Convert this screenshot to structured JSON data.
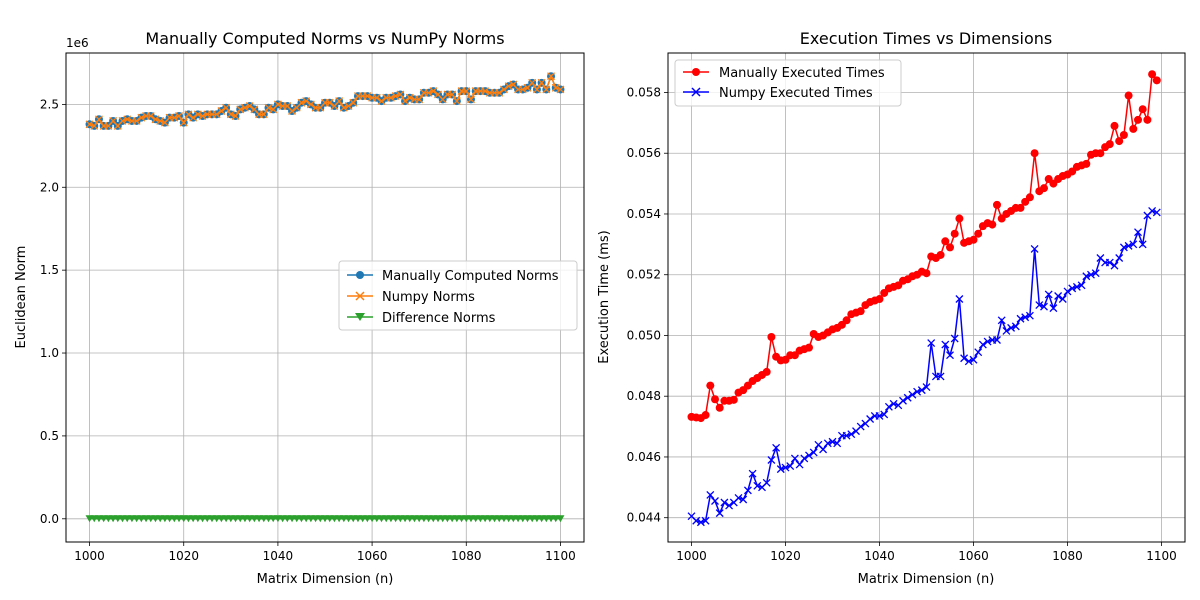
{
  "chart_data": [
    {
      "type": "line",
      "title": "Manually Computed Norms vs NumPy Norms",
      "xlabel": "Matrix Dimension (n)",
      "ylabel": "Euclidean Norm",
      "y_multiplier_label": "1e6",
      "xlim": [
        995,
        1105
      ],
      "ylim": [
        -0.14,
        2.81
      ],
      "xticks": [
        1000,
        1020,
        1040,
        1060,
        1080,
        1100
      ],
      "xtick_labels": [
        "1000",
        "1020",
        "1040",
        "1060",
        "1080",
        "1100"
      ],
      "yticks": [
        0,
        0.5,
        1,
        1.5,
        2,
        2.5
      ],
      "ytick_labels": [
        "0.0",
        "0.5",
        "1.0",
        "1.5",
        "2.0",
        "2.5"
      ],
      "grid": true,
      "legend_position": "center-right",
      "x_range": [
        1000,
        1100
      ],
      "series": [
        {
          "name": "Manually Computed Norms",
          "color": "#1f77b4",
          "marker": "circle",
          "values": [
            2.38,
            2.37,
            2.41,
            2.37,
            2.37,
            2.4,
            2.37,
            2.4,
            2.41,
            2.4,
            2.4,
            2.42,
            2.43,
            2.43,
            2.41,
            2.4,
            2.39,
            2.42,
            2.42,
            2.43,
            2.39,
            2.44,
            2.42,
            2.44,
            2.43,
            2.44,
            2.44,
            2.44,
            2.46,
            2.48,
            2.44,
            2.43,
            2.47,
            2.48,
            2.49,
            2.47,
            2.44,
            2.44,
            2.48,
            2.47,
            2.5,
            2.49,
            2.49,
            2.46,
            2.48,
            2.51,
            2.52,
            2.5,
            2.48,
            2.48,
            2.51,
            2.51,
            2.49,
            2.52,
            2.48,
            2.49,
            2.51,
            2.55,
            2.55,
            2.55,
            2.54,
            2.54,
            2.52,
            2.54,
            2.54,
            2.55,
            2.56,
            2.52,
            2.54,
            2.53,
            2.53,
            2.57,
            2.57,
            2.58,
            2.56,
            2.53,
            2.56,
            2.56,
            2.52,
            2.58,
            2.58,
            2.53,
            2.58,
            2.58,
            2.58,
            2.57,
            2.57,
            2.57,
            2.59,
            2.61,
            2.62,
            2.59,
            2.59,
            2.6,
            2.63,
            2.59,
            2.63,
            2.59,
            2.67,
            2.6,
            2.59
          ]
        },
        {
          "name": "Numpy Norms",
          "color": "#ff7f0e",
          "marker": "x",
          "values": [
            2.38,
            2.37,
            2.41,
            2.37,
            2.37,
            2.4,
            2.37,
            2.4,
            2.41,
            2.4,
            2.4,
            2.42,
            2.43,
            2.43,
            2.41,
            2.4,
            2.39,
            2.42,
            2.42,
            2.43,
            2.39,
            2.44,
            2.42,
            2.44,
            2.43,
            2.44,
            2.44,
            2.44,
            2.46,
            2.48,
            2.44,
            2.43,
            2.47,
            2.48,
            2.49,
            2.47,
            2.44,
            2.44,
            2.48,
            2.47,
            2.5,
            2.49,
            2.49,
            2.46,
            2.48,
            2.51,
            2.52,
            2.5,
            2.48,
            2.48,
            2.51,
            2.51,
            2.49,
            2.52,
            2.48,
            2.49,
            2.51,
            2.55,
            2.55,
            2.55,
            2.54,
            2.54,
            2.52,
            2.54,
            2.54,
            2.55,
            2.56,
            2.52,
            2.54,
            2.53,
            2.53,
            2.57,
            2.57,
            2.58,
            2.56,
            2.53,
            2.56,
            2.56,
            2.52,
            2.58,
            2.58,
            2.53,
            2.58,
            2.58,
            2.58,
            2.57,
            2.57,
            2.57,
            2.59,
            2.61,
            2.62,
            2.59,
            2.59,
            2.6,
            2.63,
            2.59,
            2.63,
            2.59,
            2.67,
            2.6,
            2.59
          ]
        },
        {
          "name": "Difference Norms",
          "color": "#2ca02c",
          "marker": "triangle-down",
          "values_constant": 0
        }
      ]
    },
    {
      "type": "line",
      "title": "Execution Times vs Dimensions",
      "xlabel": "Matrix Dimension (n)",
      "ylabel": "Execution Time (ms)",
      "xlim": [
        995,
        1105
      ],
      "ylim": [
        0.0432,
        0.0593
      ],
      "xticks": [
        1000,
        1020,
        1040,
        1060,
        1080,
        1100
      ],
      "xtick_labels": [
        "1000",
        "1020",
        "1040",
        "1060",
        "1080",
        "1100"
      ],
      "yticks": [
        0.044,
        0.046,
        0.048,
        0.05,
        0.052,
        0.054,
        0.056,
        0.058
      ],
      "ytick_labels": [
        "0.044",
        "0.046",
        "0.048",
        "0.050",
        "0.052",
        "0.054",
        "0.056",
        "0.058"
      ],
      "grid": true,
      "legend_position": "top-left",
      "x_range": [
        1000,
        1100
      ],
      "series": [
        {
          "name": "Manually Executed Times",
          "color": "#ff0000",
          "marker": "circle",
          "values": [
            0.04732,
            0.0473,
            0.04728,
            0.04738,
            0.04835,
            0.0479,
            0.04762,
            0.04785,
            0.04785,
            0.04788,
            0.04812,
            0.0482,
            0.04835,
            0.0485,
            0.0486,
            0.0487,
            0.0488,
            0.04995,
            0.0493,
            0.04918,
            0.0492,
            0.04935,
            0.04935,
            0.0495,
            0.04955,
            0.0496,
            0.05005,
            0.04995,
            0.05,
            0.0501,
            0.0502,
            0.05025,
            0.05035,
            0.0505,
            0.0507,
            0.05075,
            0.0508,
            0.051,
            0.0511,
            0.05115,
            0.0512,
            0.0514,
            0.05155,
            0.0516,
            0.05165,
            0.0518,
            0.05185,
            0.05195,
            0.052,
            0.0521,
            0.05205,
            0.0526,
            0.05255,
            0.05265,
            0.0531,
            0.0529,
            0.05335,
            0.05385,
            0.05305,
            0.0531,
            0.05315,
            0.05335,
            0.0536,
            0.0537,
            0.05365,
            0.0543,
            0.05385,
            0.054,
            0.0541,
            0.0542,
            0.0542,
            0.0544,
            0.05455,
            0.056,
            0.05475,
            0.05485,
            0.05515,
            0.055,
            0.05515,
            0.05525,
            0.0553,
            0.0554,
            0.05555,
            0.0556,
            0.05565,
            0.05595,
            0.056,
            0.056,
            0.0562,
            0.0563,
            0.0569,
            0.0564,
            0.0566,
            0.0579,
            0.0568,
            0.0571,
            0.05745,
            0.0571,
            0.0586,
            0.0584
          ]
        },
        {
          "name": "Numpy Executed Times",
          "color": "#0000ff",
          "marker": "x",
          "values": [
            0.04405,
            0.0439,
            0.04385,
            0.0439,
            0.04475,
            0.04455,
            0.04415,
            0.0445,
            0.0444,
            0.0445,
            0.04465,
            0.0446,
            0.0449,
            0.04545,
            0.04505,
            0.045,
            0.04515,
            0.0459,
            0.0463,
            0.0456,
            0.04565,
            0.0457,
            0.04595,
            0.04575,
            0.04595,
            0.04605,
            0.04615,
            0.0464,
            0.04625,
            0.04645,
            0.0465,
            0.04645,
            0.0467,
            0.0467,
            0.04675,
            0.04685,
            0.047,
            0.0471,
            0.04725,
            0.04735,
            0.04735,
            0.0474,
            0.04765,
            0.04775,
            0.0477,
            0.04785,
            0.04795,
            0.04805,
            0.04815,
            0.0482,
            0.0483,
            0.04975,
            0.04865,
            0.04865,
            0.0497,
            0.04935,
            0.0499,
            0.0512,
            0.04925,
            0.04915,
            0.0492,
            0.04945,
            0.0497,
            0.0498,
            0.04985,
            0.04985,
            0.0505,
            0.05015,
            0.05025,
            0.0503,
            0.05055,
            0.0506,
            0.05065,
            0.05285,
            0.051,
            0.05095,
            0.05135,
            0.0509,
            0.0513,
            0.0512,
            0.05145,
            0.05155,
            0.0516,
            0.05165,
            0.05195,
            0.052,
            0.05205,
            0.05255,
            0.0524,
            0.0524,
            0.0523,
            0.05255,
            0.0529,
            0.05295,
            0.053,
            0.0534,
            0.053,
            0.05395,
            0.0541,
            0.05405
          ]
        }
      ]
    }
  ]
}
